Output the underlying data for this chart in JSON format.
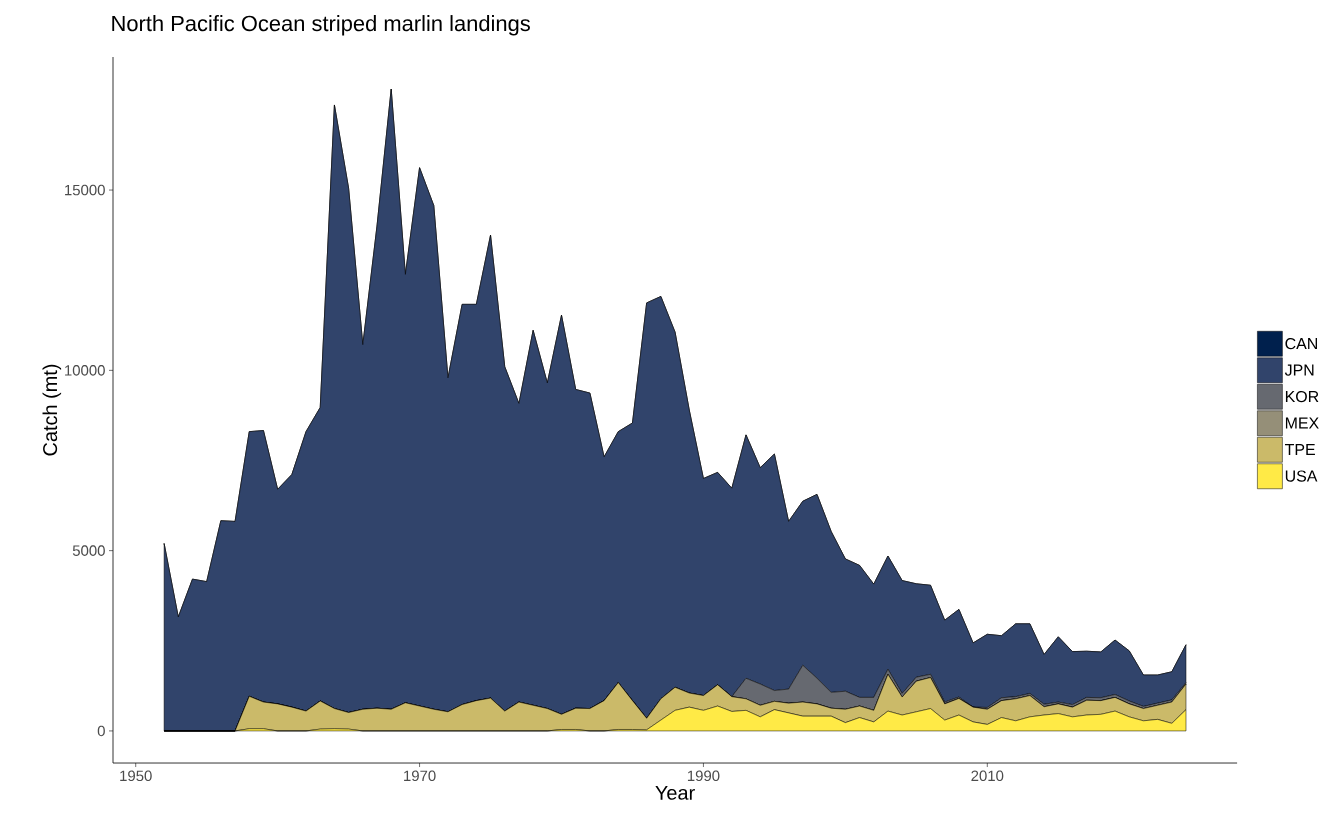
{
  "chart_data": {
    "type": "area",
    "title": "North Pacific Ocean striped marlin landings",
    "xlabel": "Year",
    "ylabel": "Catch (mt)",
    "stacked": true,
    "legend": "right",
    "grid": false,
    "x": [
      1952,
      1953,
      1954,
      1955,
      1956,
      1957,
      1958,
      1959,
      1960,
      1961,
      1962,
      1963,
      1964,
      1965,
      1966,
      1967,
      1968,
      1969,
      1970,
      1971,
      1972,
      1973,
      1974,
      1975,
      1976,
      1977,
      1978,
      1979,
      1980,
      1981,
      1982,
      1983,
      1984,
      1985,
      1986,
      1987,
      1988,
      1989,
      1990,
      1991,
      1992,
      1993,
      1994,
      1995,
      1996,
      1997,
      1998,
      1999,
      2000,
      2001,
      2002,
      2003,
      2004,
      2005,
      2006,
      2007,
      2008,
      2009,
      2010,
      2011,
      2012,
      2013,
      2014,
      2015,
      2016,
      2017,
      2018,
      2019,
      2020,
      2021,
      2022,
      2023,
      2024
    ],
    "xlim": [
      1948.4,
      2027.6
    ],
    "xticks": [
      1950,
      1970,
      1990,
      2010
    ],
    "ylim": [
      -890,
      18690
    ],
    "yticks": [
      0,
      5000,
      10000,
      15000
    ],
    "series": [
      {
        "name": "USA",
        "color": "#ffea46",
        "values": [
          0,
          0,
          0,
          0,
          0,
          0,
          60,
          60,
          0,
          0,
          0,
          50,
          60,
          50,
          0,
          0,
          0,
          0,
          0,
          0,
          0,
          0,
          0,
          0,
          0,
          0,
          0,
          0,
          40,
          40,
          0,
          0,
          40,
          40,
          30,
          300,
          570,
          660,
          570,
          690,
          540,
          570,
          390,
          590,
          500,
          410,
          410,
          410,
          230,
          370,
          250,
          550,
          440,
          530,
          620,
          300,
          440,
          250,
          180,
          370,
          280,
          390,
          440,
          480,
          390,
          440,
          460,
          550,
          390,
          280,
          320,
          210,
          590
        ]
      },
      {
        "name": "TPE",
        "color": "#cbba69",
        "values": [
          0,
          0,
          0,
          0,
          0,
          0,
          900,
          740,
          750,
          660,
          550,
          780,
          560,
          460,
          600,
          630,
          600,
          780,
          690,
          600,
          530,
          730,
          840,
          910,
          550,
          800,
          710,
          620,
          420,
          590,
          620,
          840,
          1300,
          800,
          320,
          590,
          640,
          390,
          410,
          590,
          410,
          320,
          320,
          230,
          270,
          390,
          340,
          220,
          370,
          320,
          320,
          1020,
          500,
          850,
          860,
          450,
          460,
          410,
          420,
          470,
          610,
          590,
          230,
          270,
          270,
          410,
          380,
          380,
          360,
          340,
          390,
          590,
          710
        ]
      },
      {
        "name": "MEX",
        "color": "#958f78",
        "values": [
          null,
          null,
          null,
          null,
          null,
          null,
          null,
          null,
          null,
          null,
          null,
          null,
          null,
          null,
          null,
          null,
          null,
          null,
          null,
          null,
          null,
          null,
          null,
          null,
          null,
          null,
          null,
          null,
          null,
          null,
          null,
          null,
          null,
          null,
          null,
          null,
          null,
          null,
          null,
          null,
          null,
          null,
          null,
          null,
          null,
          null,
          null,
          null,
          null,
          null,
          null,
          null,
          null,
          null,
          null,
          null,
          null,
          null,
          null,
          null,
          null,
          null,
          null,
          null,
          null,
          null,
          null,
          null,
          null,
          null,
          null,
          null,
          null
        ]
      },
      {
        "name": "KOR",
        "color": "#666970",
        "values": [
          0,
          0,
          0,
          0,
          0,
          0,
          0,
          0,
          0,
          0,
          0,
          0,
          0,
          0,
          0,
          0,
          0,
          0,
          0,
          0,
          0,
          0,
          0,
          0,
          0,
          0,
          0,
          0,
          0,
          0,
          0,
          0,
          0,
          0,
          0,
          0,
          0,
          0,
          0,
          0,
          0,
          570,
          590,
          300,
          390,
          1020,
          710,
          440,
          500,
          240,
          360,
          140,
          100,
          110,
          90,
          50,
          40,
          null,
          50,
          80,
          60,
          60,
          70,
          50,
          70,
          80,
          80,
          80,
          80,
          60,
          60,
          60,
          40
        ]
      },
      {
        "name": "JPN",
        "color": "#31446b",
        "values": [
          5200,
          3160,
          4210,
          4140,
          5830,
          5810,
          7340,
          7530,
          5950,
          6450,
          7750,
          8140,
          16740,
          14540,
          10110,
          13370,
          17200,
          11880,
          14930,
          13970,
          9260,
          11100,
          10990,
          12840,
          9550,
          8280,
          10400,
          9030,
          11070,
          8840,
          8750,
          6760,
          6960,
          7700,
          11520,
          11160,
          9850,
          7850,
          6020,
          5890,
          5780,
          6750,
          6000,
          6560,
          4650,
          4550,
          5100,
          4460,
          3670,
          3660,
          3140,
          3140,
          3130,
          2590,
          2470,
          2270,
          2430,
          1780,
          2030,
          1720,
          2020,
          1930,
          1380,
          1810,
          1470,
          1280,
          1270,
          1510,
          1390,
          870,
          780,
          780,
          1050
        ]
      },
      {
        "name": "CAN",
        "color": "#00204d",
        "values": [
          null,
          null,
          null,
          null,
          null,
          null,
          null,
          null,
          null,
          null,
          null,
          null,
          null,
          null,
          null,
          null,
          null,
          null,
          null,
          null,
          null,
          null,
          null,
          null,
          null,
          null,
          null,
          null,
          null,
          null,
          null,
          null,
          null,
          null,
          null,
          null,
          null,
          null,
          null,
          null,
          null,
          null,
          null,
          null,
          null,
          null,
          null,
          null,
          null,
          null,
          null,
          null,
          null,
          null,
          null,
          null,
          null,
          null,
          null,
          null,
          null,
          null,
          null,
          null,
          null,
          null,
          null,
          null,
          null,
          null,
          null,
          null,
          null
        ]
      }
    ]
  }
}
